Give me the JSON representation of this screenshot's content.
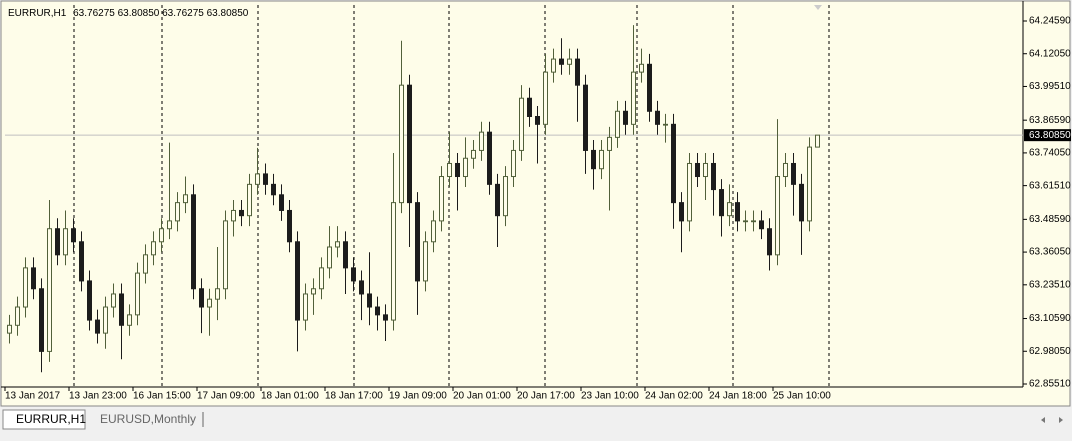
{
  "window": {
    "tabs": [
      "EURRUR,H1",
      "EURUSD,Monthly"
    ]
  },
  "chart_data": {
    "type": "candlestick",
    "symbol": "EURRUR,H1",
    "last_quote": [
      {
        "value": 63.76275,
        "label": "63.76275"
      },
      {
        "value": 63.8085,
        "label": "63.80850"
      },
      {
        "value": 63.76275,
        "label": "63.76275"
      },
      {
        "value": 63.8085,
        "label": "63.80850"
      }
    ],
    "bid_line": {
      "value": 63.8085,
      "label": "63.80850"
    },
    "up_color": "#51603a",
    "down_color": "#1c1c1c",
    "background": "#fefde9",
    "xlim": [
      -0.5,
      126.75
    ],
    "ylim": [
      62.8474,
      64.3072
    ],
    "xticks": [
      {
        "value": 0,
        "label": "13 Jan 2017"
      },
      {
        "value": 8,
        "label": "13 Jan 23:00"
      },
      {
        "value": 16,
        "label": "16 Jan 15:00"
      },
      {
        "value": 24,
        "label": "17 Jan 09:00"
      },
      {
        "value": 32,
        "label": "18 Jan 01:00"
      },
      {
        "value": 40,
        "label": "18 Jan 17:00"
      },
      {
        "value": 48,
        "label": "19 Jan 09:00"
      },
      {
        "value": 56,
        "label": "20 Jan 01:00"
      },
      {
        "value": 64,
        "label": "20 Jan 17:00"
      },
      {
        "value": 72,
        "label": "23 Jan 10:00"
      },
      {
        "value": 80,
        "label": "24 Jan 02:00"
      },
      {
        "value": 88,
        "label": "24 Jan 18:00"
      },
      {
        "value": 96,
        "label": "25 Jan 10:00"
      }
    ],
    "yticks": [
      {
        "value": 64.2459,
        "label": "64.24590"
      },
      {
        "value": 64.1205,
        "label": "64.12050"
      },
      {
        "value": 63.9951,
        "label": "63.99510"
      },
      {
        "value": 63.8659,
        "label": "63.86590"
      },
      {
        "value": 63.7405,
        "label": "63.74050"
      },
      {
        "value": 63.6151,
        "label": "63.61510"
      },
      {
        "value": 63.4859,
        "label": "63.48590"
      },
      {
        "value": 63.3605,
        "label": "63.36050"
      },
      {
        "value": 63.2351,
        "label": "63.23510"
      },
      {
        "value": 63.1059,
        "label": "63.10590"
      },
      {
        "value": 62.9805,
        "label": "62.98050"
      },
      {
        "value": 62.8551,
        "label": "62.85510"
      }
    ],
    "open": [
      63.05,
      63.08,
      63.15,
      63.3,
      63.22,
      62.98,
      63.45,
      63.35,
      63.45,
      63.4,
      63.25,
      63.1,
      63.05,
      63.15,
      63.2,
      63.08,
      63.12,
      63.28,
      63.35,
      63.4,
      63.45,
      63.48,
      63.55,
      63.58,
      63.22,
      63.15,
      63.18,
      63.22,
      63.48,
      63.52,
      63.5,
      63.62,
      63.66,
      63.62,
      63.58,
      63.52,
      63.4,
      63.1,
      63.2,
      63.22,
      63.3,
      63.38,
      63.4,
      63.3,
      63.25,
      63.2,
      63.15,
      63.12,
      63.1,
      63.55,
      64.0,
      63.55,
      63.25,
      63.4,
      63.48,
      63.65,
      63.7,
      63.65,
      63.72,
      63.75,
      63.82,
      63.62,
      63.5,
      63.65,
      63.75,
      63.95,
      63.88,
      63.85,
      64.05,
      64.1,
      64.08,
      64.1,
      64.0,
      63.75,
      63.68,
      63.75,
      63.8,
      63.9,
      63.85,
      64.05,
      64.08,
      63.9,
      63.85,
      63.85,
      63.55,
      63.48,
      63.7,
      63.65,
      63.7,
      63.6,
      63.5,
      63.55,
      63.48,
      63.48,
      63.48,
      63.45,
      63.35,
      63.65,
      63.7,
      63.62,
      63.48,
      63.76275
    ],
    "high": [
      63.12,
      63.19,
      63.34,
      63.34,
      63.26,
      63.56,
      63.49,
      63.52,
      63.49,
      63.44,
      63.29,
      63.14,
      63.19,
      63.24,
      63.24,
      63.16,
      63.32,
      63.39,
      63.44,
      63.49,
      63.78,
      63.59,
      63.65,
      63.62,
      63.26,
      63.22,
      63.38,
      63.52,
      63.56,
      63.56,
      63.66,
      63.76,
      63.7,
      63.66,
      63.62,
      63.56,
      63.44,
      63.24,
      63.26,
      63.34,
      63.46,
      63.46,
      63.44,
      63.34,
      63.29,
      63.36,
      63.19,
      63.16,
      63.74,
      64.17,
      64.04,
      63.59,
      63.44,
      63.52,
      63.69,
      63.82,
      63.74,
      63.8,
      63.79,
      63.86,
      63.86,
      63.66,
      63.69,
      63.79,
      64.0,
      63.99,
      63.92,
      64.12,
      64.14,
      64.18,
      64.14,
      64.14,
      64.04,
      63.79,
      63.79,
      63.84,
      63.94,
      63.94,
      64.23,
      64.14,
      64.12,
      63.94,
      63.89,
      63.89,
      63.59,
      63.74,
      63.74,
      63.74,
      63.74,
      63.64,
      63.62,
      63.59,
      63.52,
      63.52,
      63.52,
      63.49,
      63.87,
      63.74,
      63.74,
      63.66,
      63.8,
      63.8085
    ],
    "low": [
      63.01,
      63.04,
      63.11,
      63.18,
      62.9,
      62.94,
      63.31,
      63.31,
      63.36,
      63.21,
      63.06,
      63.01,
      62.99,
      63.11,
      62.95,
      63.04,
      63.08,
      63.24,
      63.31,
      63.36,
      63.41,
      63.44,
      63.51,
      63.18,
      63.05,
      63.04,
      63.1,
      63.18,
      63.42,
      63.46,
      63.46,
      63.58,
      63.58,
      63.54,
      63.48,
      63.36,
      62.98,
      63.06,
      63.12,
      63.18,
      63.26,
      63.34,
      63.2,
      63.21,
      63.1,
      63.08,
      63.06,
      63.02,
      63.06,
      63.51,
      63.38,
      63.12,
      63.21,
      63.36,
      63.44,
      63.61,
      63.52,
      63.61,
      63.68,
      63.71,
      63.58,
      63.38,
      63.46,
      63.61,
      63.71,
      63.84,
      63.7,
      63.81,
      64.01,
      64.04,
      64.04,
      63.86,
      63.66,
      63.6,
      63.64,
      63.52,
      63.76,
      63.81,
      63.81,
      64.01,
      63.86,
      63.81,
      63.78,
      63.45,
      63.36,
      63.44,
      63.61,
      63.56,
      63.5,
      63.42,
      63.46,
      63.44,
      63.44,
      63.44,
      63.41,
      63.29,
      63.31,
      63.61,
      63.5,
      63.35,
      63.44,
      63.76275
    ],
    "close": [
      63.08,
      63.15,
      63.3,
      63.22,
      62.98,
      63.45,
      63.35,
      63.45,
      63.4,
      63.25,
      63.1,
      63.05,
      63.15,
      63.2,
      63.08,
      63.12,
      63.28,
      63.35,
      63.4,
      63.45,
      63.48,
      63.55,
      63.58,
      63.22,
      63.15,
      63.18,
      63.22,
      63.48,
      63.52,
      63.5,
      63.62,
      63.66,
      63.62,
      63.58,
      63.52,
      63.4,
      63.1,
      63.2,
      63.22,
      63.3,
      63.38,
      63.4,
      63.3,
      63.25,
      63.2,
      63.15,
      63.12,
      63.1,
      63.55,
      64.0,
      63.55,
      63.25,
      63.4,
      63.48,
      63.65,
      63.7,
      63.65,
      63.72,
      63.75,
      63.82,
      63.62,
      63.5,
      63.65,
      63.75,
      63.95,
      63.88,
      63.85,
      64.05,
      64.1,
      64.08,
      64.1,
      64.0,
      63.75,
      63.68,
      63.75,
      63.8,
      63.9,
      63.85,
      64.05,
      64.08,
      63.9,
      63.85,
      63.85,
      63.55,
      63.48,
      63.7,
      63.65,
      63.7,
      63.6,
      63.5,
      63.55,
      63.48,
      63.48,
      63.48,
      63.45,
      63.35,
      63.65,
      63.7,
      63.62,
      63.48,
      63.76275,
      63.8085
    ]
  }
}
